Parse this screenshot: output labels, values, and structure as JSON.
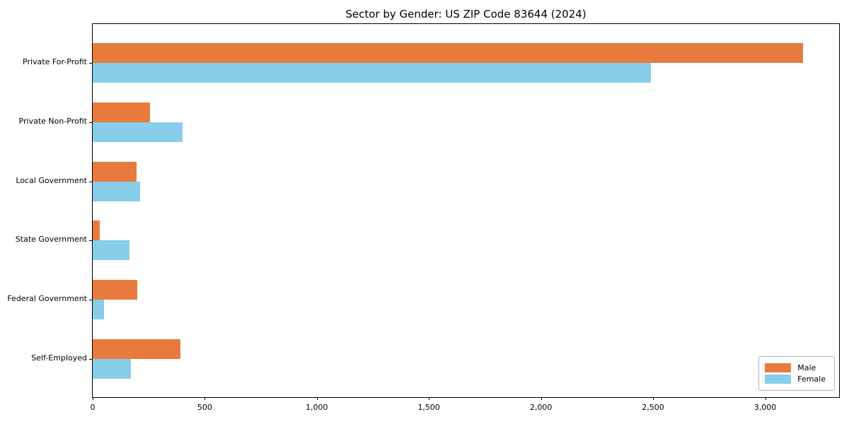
{
  "chart_data": {
    "type": "bar",
    "orientation": "horizontal",
    "title": "Sector by Gender: US ZIP Code 83644 (2024)",
    "categories": [
      "Private For-Profit",
      "Private Non-Profit",
      "Local Government",
      "State Government",
      "Federal Government",
      "Self-Employed"
    ],
    "series": [
      {
        "name": "Male",
        "color": "#e97a3d",
        "values": [
          3170,
          255,
          195,
          30,
          200,
          390
        ]
      },
      {
        "name": "Female",
        "color": "#87ceea",
        "values": [
          2490,
          400,
          210,
          165,
          50,
          170
        ]
      }
    ],
    "xlabel": "",
    "ylabel": "",
    "xlim": [
      0,
      3330
    ],
    "xticks": [
      {
        "value": 0,
        "label": "0"
      },
      {
        "value": 500,
        "label": "500"
      },
      {
        "value": 1000,
        "label": "1,000"
      },
      {
        "value": 1500,
        "label": "1,500"
      },
      {
        "value": 2000,
        "label": "2,000"
      },
      {
        "value": 2500,
        "label": "2,500"
      },
      {
        "value": 3000,
        "label": "3,000"
      }
    ],
    "grid": false,
    "legend": {
      "position": "lower-right",
      "entries": [
        "Male",
        "Female"
      ]
    },
    "colors": {
      "spine": "#000000",
      "background": "#ffffff"
    }
  }
}
